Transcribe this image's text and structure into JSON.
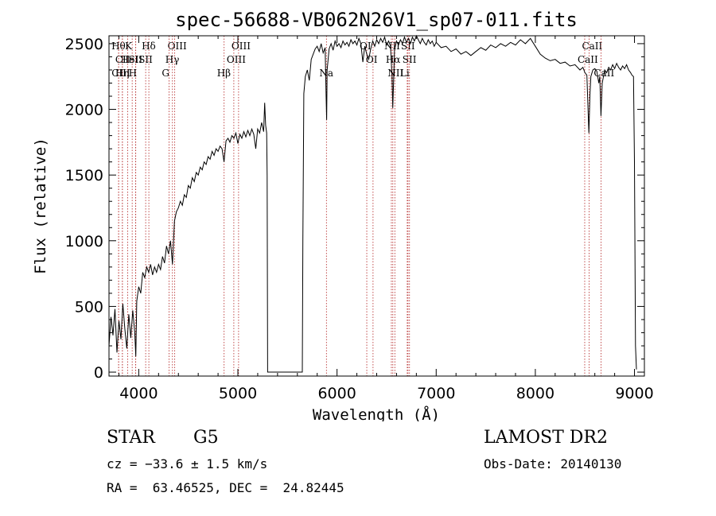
{
  "chart_data": {
    "type": "line",
    "title": "spec-56688-VB062N26V1_sp07-011.fits",
    "xlabel": "Wavelength (Å)",
    "ylabel": "Flux (relative)",
    "xlim": [
      3700,
      9100
    ],
    "ylim": [
      -30,
      2560
    ],
    "xticks": [
      4000,
      5000,
      6000,
      7000,
      8000,
      9000
    ],
    "yticks": [
      0,
      500,
      1000,
      1500,
      2000,
      2500
    ],
    "grid": false,
    "series": [
      {
        "values_points": [
          [
            3700,
            200
          ],
          [
            3720,
            420
          ],
          [
            3740,
            280
          ],
          [
            3760,
            480
          ],
          [
            3780,
            150
          ],
          [
            3800,
            390
          ],
          [
            3820,
            250
          ],
          [
            3840,
            520
          ],
          [
            3860,
            330
          ],
          [
            3880,
            180
          ],
          [
            3900,
            440
          ],
          [
            3920,
            260
          ],
          [
            3940,
            470
          ],
          [
            3960,
            300
          ],
          [
            3970,
            120
          ],
          [
            3980,
            540
          ],
          [
            4000,
            650
          ],
          [
            4020,
            600
          ],
          [
            4040,
            760
          ],
          [
            4060,
            720
          ],
          [
            4080,
            800
          ],
          [
            4100,
            760
          ],
          [
            4120,
            820
          ],
          [
            4140,
            740
          ],
          [
            4160,
            800
          ],
          [
            4180,
            760
          ],
          [
            4200,
            820
          ],
          [
            4220,
            780
          ],
          [
            4240,
            880
          ],
          [
            4260,
            830
          ],
          [
            4280,
            960
          ],
          [
            4300,
            900
          ],
          [
            4320,
            1000
          ],
          [
            4340,
            820
          ],
          [
            4360,
            1150
          ],
          [
            4380,
            1220
          ],
          [
            4400,
            1250
          ],
          [
            4420,
            1300
          ],
          [
            4440,
            1270
          ],
          [
            4460,
            1350
          ],
          [
            4480,
            1330
          ],
          [
            4500,
            1420
          ],
          [
            4520,
            1400
          ],
          [
            4540,
            1480
          ],
          [
            4560,
            1450
          ],
          [
            4580,
            1520
          ],
          [
            4600,
            1500
          ],
          [
            4620,
            1560
          ],
          [
            4640,
            1540
          ],
          [
            4660,
            1600
          ],
          [
            4680,
            1580
          ],
          [
            4700,
            1640
          ],
          [
            4720,
            1620
          ],
          [
            4740,
            1680
          ],
          [
            4760,
            1650
          ],
          [
            4780,
            1700
          ],
          [
            4800,
            1680
          ],
          [
            4820,
            1720
          ],
          [
            4840,
            1700
          ],
          [
            4860,
            1600
          ],
          [
            4880,
            1760
          ],
          [
            4900,
            1780
          ],
          [
            4920,
            1750
          ],
          [
            4940,
            1800
          ],
          [
            4960,
            1780
          ],
          [
            4980,
            1820
          ],
          [
            5000,
            1740
          ],
          [
            5020,
            1810
          ],
          [
            5040,
            1780
          ],
          [
            5060,
            1830
          ],
          [
            5080,
            1790
          ],
          [
            5100,
            1840
          ],
          [
            5120,
            1800
          ],
          [
            5140,
            1850
          ],
          [
            5160,
            1810
          ],
          [
            5180,
            1700
          ],
          [
            5200,
            1850
          ],
          [
            5220,
            1820
          ],
          [
            5240,
            1900
          ],
          [
            5260,
            1830
          ],
          [
            5270,
            2050
          ],
          [
            5280,
            1880
          ],
          [
            5290,
            1820
          ],
          [
            5295,
            1500
          ],
          [
            5300,
            0
          ],
          [
            5650,
            0
          ],
          [
            5655,
            1000
          ],
          [
            5665,
            2120
          ],
          [
            5680,
            2250
          ],
          [
            5700,
            2300
          ],
          [
            5720,
            2220
          ],
          [
            5740,
            2380
          ],
          [
            5760,
            2420
          ],
          [
            5780,
            2460
          ],
          [
            5800,
            2480
          ],
          [
            5820,
            2440
          ],
          [
            5840,
            2500
          ],
          [
            5860,
            2430
          ],
          [
            5880,
            2470
          ],
          [
            5890,
            2100
          ],
          [
            5895,
            1920
          ],
          [
            5900,
            2300
          ],
          [
            5920,
            2460
          ],
          [
            5940,
            2500
          ],
          [
            5960,
            2450
          ],
          [
            5980,
            2520
          ],
          [
            6000,
            2480
          ],
          [
            6020,
            2500
          ],
          [
            6040,
            2470
          ],
          [
            6060,
            2520
          ],
          [
            6080,
            2490
          ],
          [
            6100,
            2510
          ],
          [
            6120,
            2480
          ],
          [
            6140,
            2530
          ],
          [
            6160,
            2500
          ],
          [
            6180,
            2520
          ],
          [
            6200,
            2490
          ],
          [
            6220,
            2540
          ],
          [
            6240,
            2500
          ],
          [
            6260,
            2360
          ],
          [
            6280,
            2480
          ],
          [
            6300,
            2420
          ],
          [
            6320,
            2380
          ],
          [
            6340,
            2460
          ],
          [
            6360,
            2520
          ],
          [
            6380,
            2480
          ],
          [
            6400,
            2530
          ],
          [
            6420,
            2500
          ],
          [
            6440,
            2540
          ],
          [
            6460,
            2510
          ],
          [
            6480,
            2550
          ],
          [
            6500,
            2490
          ],
          [
            6520,
            2520
          ],
          [
            6540,
            2480
          ],
          [
            6555,
            2250
          ],
          [
            6562,
            2010
          ],
          [
            6570,
            2200
          ],
          [
            6580,
            2450
          ],
          [
            6600,
            2520
          ],
          [
            6620,
            2490
          ],
          [
            6640,
            2530
          ],
          [
            6660,
            2500
          ],
          [
            6680,
            2550
          ],
          [
            6700,
            2510
          ],
          [
            6720,
            2540
          ],
          [
            6740,
            2500
          ],
          [
            6760,
            2550
          ],
          [
            6780,
            2520
          ],
          [
            6800,
            2560
          ],
          [
            6820,
            2530
          ],
          [
            6840,
            2500
          ],
          [
            6860,
            2540
          ],
          [
            6880,
            2510
          ],
          [
            6900,
            2490
          ],
          [
            6920,
            2530
          ],
          [
            6940,
            2500
          ],
          [
            6960,
            2520
          ],
          [
            6980,
            2480
          ],
          [
            7000,
            2510
          ],
          [
            7050,
            2470
          ],
          [
            7100,
            2480
          ],
          [
            7150,
            2440
          ],
          [
            7200,
            2460
          ],
          [
            7250,
            2420
          ],
          [
            7300,
            2440
          ],
          [
            7350,
            2410
          ],
          [
            7400,
            2440
          ],
          [
            7450,
            2470
          ],
          [
            7500,
            2450
          ],
          [
            7550,
            2490
          ],
          [
            7600,
            2470
          ],
          [
            7650,
            2500
          ],
          [
            7700,
            2480
          ],
          [
            7750,
            2510
          ],
          [
            7800,
            2490
          ],
          [
            7850,
            2530
          ],
          [
            7900,
            2500
          ],
          [
            7950,
            2540
          ],
          [
            8000,
            2480
          ],
          [
            8050,
            2420
          ],
          [
            8100,
            2390
          ],
          [
            8150,
            2370
          ],
          [
            8200,
            2380
          ],
          [
            8250,
            2350
          ],
          [
            8300,
            2360
          ],
          [
            8350,
            2330
          ],
          [
            8400,
            2340
          ],
          [
            8450,
            2300
          ],
          [
            8480,
            2320
          ],
          [
            8500,
            2280
          ],
          [
            8520,
            2260
          ],
          [
            8540,
            1820
          ],
          [
            8550,
            2100
          ],
          [
            8560,
            2250
          ],
          [
            8580,
            2300
          ],
          [
            8600,
            2310
          ],
          [
            8620,
            2290
          ],
          [
            8640,
            2200
          ],
          [
            8650,
            2250
          ],
          [
            8662,
            1950
          ],
          [
            8675,
            2200
          ],
          [
            8700,
            2300
          ],
          [
            8720,
            2280
          ],
          [
            8740,
            2320
          ],
          [
            8760,
            2300
          ],
          [
            8780,
            2340
          ],
          [
            8800,
            2310
          ],
          [
            8820,
            2350
          ],
          [
            8840,
            2320
          ],
          [
            8860,
            2300
          ],
          [
            8880,
            2330
          ],
          [
            8900,
            2310
          ],
          [
            8920,
            2340
          ],
          [
            8940,
            2300
          ],
          [
            8960,
            2280
          ],
          [
            8975,
            2260
          ],
          [
            8990,
            2250
          ],
          [
            9000,
            1600
          ],
          [
            9010,
            200
          ],
          [
            9020,
            20
          ]
        ]
      }
    ],
    "line_markers": [
      {
        "label": "Hθ",
        "x": 3797,
        "row": 0
      },
      {
        "label": "CII",
        "x": 3835,
        "row": 1
      },
      {
        "label": "CIII",
        "x": 3798,
        "row": 2
      },
      {
        "label": "HeI",
        "x": 3889,
        "row": 1
      },
      {
        "label": "Hη",
        "x": 3835,
        "row": 2
      },
      {
        "label": "K",
        "x": 3934,
        "row": 0
      },
      {
        "label": "SII",
        "x": 3969,
        "row": 1
      },
      {
        "label": "H",
        "x": 3970,
        "row": 2
      },
      {
        "label": "Hδ",
        "x": 4102,
        "row": 0
      },
      {
        "label": "SII",
        "x": 4070,
        "row": 1
      },
      {
        "label": "OIII",
        "x": 4363,
        "row": 0
      },
      {
        "label": "Hγ",
        "x": 4340,
        "row": 1
      },
      {
        "label": "G",
        "x": 4305,
        "row": 2
      },
      {
        "label": "Hβ",
        "x": 4861,
        "row": 2
      },
      {
        "label": "OIII",
        "x": 5007,
        "row": 0
      },
      {
        "label": "OIII",
        "x": 4959,
        "row": 1
      },
      {
        "label": "Na",
        "x": 5893,
        "row": 2
      },
      {
        "label": "OI",
        "x": 6300,
        "row": 0
      },
      {
        "label": "OI",
        "x": 6363,
        "row": 1
      },
      {
        "label": "NII",
        "x": 6548,
        "row": 0
      },
      {
        "label": "Hα",
        "x": 6563,
        "row": 1
      },
      {
        "label": "NII",
        "x": 6583,
        "row": 2
      },
      {
        "label": "SII",
        "x": 6716,
        "row": 0
      },
      {
        "label": "SII",
        "x": 6731,
        "row": 1
      },
      {
        "label": "Li",
        "x": 6708,
        "row": 2
      },
      {
        "label": "CaII",
        "x": 8542,
        "row": 0
      },
      {
        "label": "CaII",
        "x": 8498,
        "row": 1
      },
      {
        "label": "CaII",
        "x": 8662,
        "row": 2
      }
    ]
  },
  "info": {
    "object_type": "STAR",
    "subclass": "G5",
    "survey": "LAMOST DR2",
    "redshift_line": "cz = −33.6 ± 1.5 km/s",
    "obs_date_line": "Obs-Date: 20140130",
    "coord_line": "RA =  63.46525, DEC =  24.82445"
  },
  "colors": {
    "line": "#000000",
    "marker": "#b22222",
    "background": "#ffffff"
  }
}
